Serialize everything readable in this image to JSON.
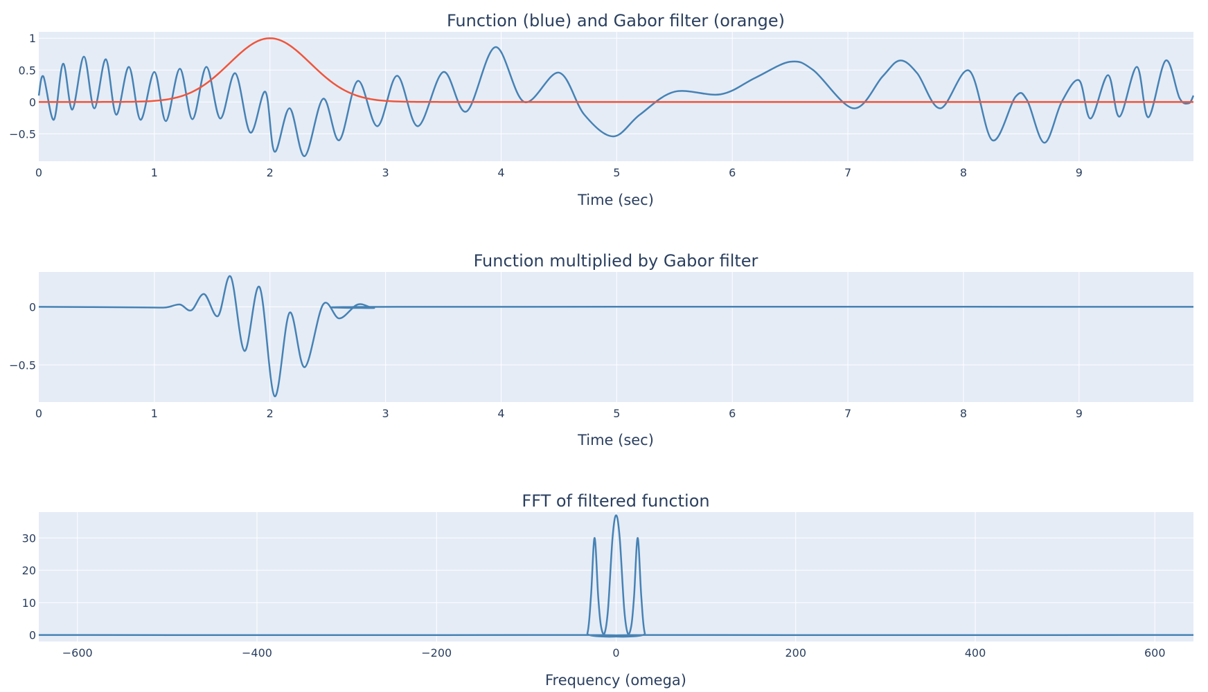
{
  "colors": {
    "plot_bg": "#E5ECF6",
    "grid": "#ffffff",
    "text": "#2a3f5f",
    "series_blue": "#4682B4",
    "series_orange": "#EF553B"
  },
  "chart_data": [
    {
      "type": "line",
      "title": "Function (blue) and Gabor filter (orange)",
      "xlabel": "Time (sec)",
      "ylabel": "",
      "xlim": [
        0,
        9.99
      ],
      "ylim": [
        -0.93,
        1.1
      ],
      "xticks": [
        0,
        1,
        2,
        3,
        4,
        5,
        6,
        7,
        8,
        9
      ],
      "xtick_labels": [
        "0",
        "1",
        "2",
        "3",
        "4",
        "5",
        "6",
        "7",
        "8",
        "9"
      ],
      "yticks": [
        -0.5,
        0,
        0.5,
        1
      ],
      "ytick_labels": [
        "−0.5",
        "0",
        "0.5",
        "1"
      ],
      "grid": true,
      "series": [
        {
          "color": "#4682B4",
          "x": [
            0,
            0.04,
            0.13,
            0.21,
            0.29,
            0.39,
            0.48,
            0.58,
            0.67,
            0.78,
            0.88,
            1.0,
            1.1,
            1.22,
            1.33,
            1.45,
            1.57,
            1.7,
            1.83,
            1.96,
            2.04,
            2.17,
            2.3,
            2.46,
            2.6,
            2.76,
            2.93,
            3.1,
            3.28,
            3.5,
            3.7,
            3.95,
            4.2,
            4.5,
            4.72,
            4.97,
            5.2,
            5.5,
            5.9,
            6.2,
            6.5,
            6.7,
            7.05,
            7.3,
            7.45,
            7.6,
            7.8,
            8.05,
            8.25,
            8.45,
            8.55,
            8.7,
            8.85,
            9.0,
            9.1,
            9.25,
            9.35,
            9.5,
            9.6,
            9.75,
            9.87,
            9.95,
            9.99
          ],
          "y": [
            0.1,
            0.4,
            -0.28,
            0.6,
            -0.12,
            0.71,
            -0.1,
            0.67,
            -0.2,
            0.55,
            -0.28,
            0.47,
            -0.3,
            0.52,
            -0.27,
            0.55,
            -0.26,
            0.45,
            -0.48,
            0.16,
            -0.78,
            -0.1,
            -0.85,
            0.05,
            -0.6,
            0.33,
            -0.38,
            0.41,
            -0.38,
            0.47,
            -0.15,
            0.86,
            0.0,
            0.46,
            -0.2,
            -0.54,
            -0.2,
            0.16,
            0.12,
            0.38,
            0.63,
            0.5,
            -0.1,
            0.4,
            0.65,
            0.45,
            -0.1,
            0.49,
            -0.6,
            0.08,
            0.03,
            -0.64,
            0.0,
            0.34,
            -0.26,
            0.42,
            -0.23,
            0.55,
            -0.24,
            0.65,
            0.06,
            -0.02,
            0.1
          ]
        },
        {
          "color": "#EF553B",
          "gaussian": {
            "center": 2,
            "amplitude": 1,
            "sigma": 0.35
          }
        }
      ]
    },
    {
      "type": "line",
      "title": "Function multiplied by Gabor filter",
      "xlabel": "Time (sec)",
      "ylabel": "",
      "xlim": [
        0,
        9.99
      ],
      "ylim": [
        -0.82,
        0.3
      ],
      "xticks": [
        0,
        1,
        2,
        3,
        4,
        5,
        6,
        7,
        8,
        9
      ],
      "xtick_labels": [
        "0",
        "1",
        "2",
        "3",
        "4",
        "5",
        "6",
        "7",
        "8",
        "9"
      ],
      "yticks": [
        -0.5,
        0
      ],
      "ytick_labels": [
        "−0.5",
        "0"
      ],
      "grid": true,
      "series": [
        {
          "color": "#4682B4",
          "x": [
            0,
            0.9,
            1.1,
            1.22,
            1.32,
            1.43,
            1.55,
            1.66,
            1.78,
            1.91,
            2.04,
            2.17,
            2.3,
            2.46,
            2.6,
            2.76,
            2.9,
            3.1,
            9.99
          ],
          "y": [
            0,
            -0.005,
            -0.005,
            0.02,
            -0.03,
            0.11,
            -0.08,
            0.26,
            -0.38,
            0.17,
            -0.77,
            -0.05,
            -0.52,
            0.02,
            -0.1,
            0.02,
            -0.01,
            0,
            0
          ]
        }
      ]
    },
    {
      "type": "line",
      "title": "FFT of filtered function",
      "xlabel": "Frequency (omega)",
      "ylabel": "",
      "xlim": [
        -643,
        643
      ],
      "ylim": [
        -2,
        38
      ],
      "xticks": [
        -600,
        -400,
        -200,
        0,
        200,
        400,
        600
      ],
      "xtick_labels": [
        "−600",
        "−400",
        "−200",
        "0",
        "200",
        "400",
        "600"
      ],
      "yticks": [
        0,
        10,
        20,
        30
      ],
      "ytick_labels": [
        "0",
        "10",
        "20",
        "30"
      ],
      "grid": true,
      "series": [
        {
          "color": "#4682B4",
          "x": [
            -643,
            -40,
            -32,
            -28,
            -24,
            -20,
            -17,
            -13,
            -9,
            -4,
            0,
            4,
            9,
            13,
            17,
            20,
            24,
            28,
            32,
            40,
            643
          ],
          "y": [
            0,
            0,
            0.5,
            12,
            30,
            12,
            3,
            0.5,
            8,
            30,
            37,
            30,
            8,
            0.5,
            3,
            12,
            30,
            12,
            0.5,
            0,
            0
          ]
        }
      ]
    }
  ]
}
